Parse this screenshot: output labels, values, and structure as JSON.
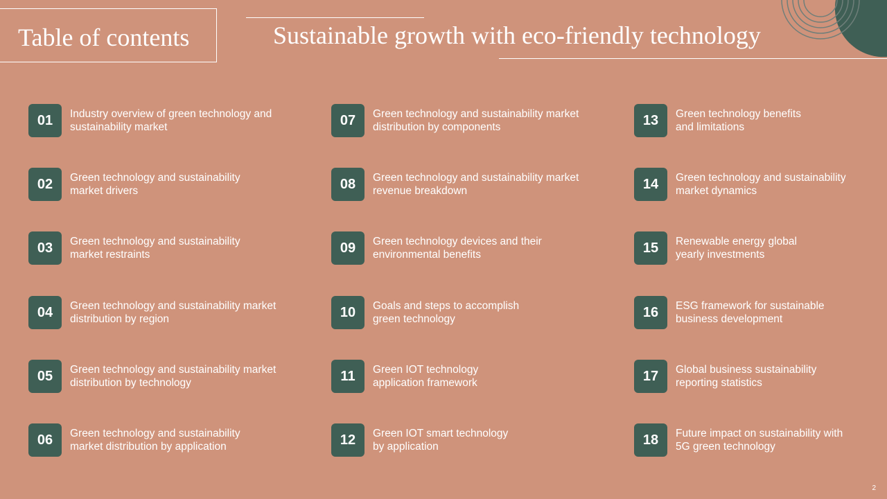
{
  "header": {
    "toc_label": "Table of contents",
    "title": "Sustainable growth with eco-friendly technology"
  },
  "colors": {
    "background": "#cf937b",
    "badge": "#3f5f55",
    "text": "#ffffff"
  },
  "items": [
    {
      "num": "01",
      "l1": "Industry overview of green technology and",
      "l2": "sustainability market"
    },
    {
      "num": "02",
      "l1": "Green technology and sustainability",
      "l2": "market drivers"
    },
    {
      "num": "03",
      "l1": "Green technology and sustainability",
      "l2": "market restraints"
    },
    {
      "num": "04",
      "l1": "Green technology and sustainability market",
      "l2": "distribution by region"
    },
    {
      "num": "05",
      "l1": "Green technology and sustainability market",
      "l2": "distribution by technology"
    },
    {
      "num": "06",
      "l1": "Green technology and sustainability",
      "l2": "market distribution by application"
    },
    {
      "num": "07",
      "l1": "Green technology and sustainability market",
      "l2": "distribution by components"
    },
    {
      "num": "08",
      "l1": "Green technology and sustainability market",
      "l2": "revenue breakdown"
    },
    {
      "num": "09",
      "l1": "Green technology devices and their",
      "l2": "environmental benefits"
    },
    {
      "num": "10",
      "l1": "Goals and steps to accomplish",
      "l2": "green technology"
    },
    {
      "num": "11",
      "l1": "Green IOT technology",
      "l2": "application framework"
    },
    {
      "num": "12",
      "l1": "Green IOT smart technology",
      "l2": "by application"
    },
    {
      "num": "13",
      "l1": "Green technology benefits",
      "l2": "and limitations"
    },
    {
      "num": "14",
      "l1": "Green technology and sustainability",
      "l2": "market dynamics"
    },
    {
      "num": "15",
      "l1": "Renewable energy global",
      "l2": "yearly investments"
    },
    {
      "num": "16",
      "l1": "ESG framework for sustainable",
      "l2": "business development"
    },
    {
      "num": "17",
      "l1": "Global business sustainability",
      "l2": "reporting statistics"
    },
    {
      "num": "18",
      "l1": "Future impact on sustainability with",
      "l2": "5G green technology"
    }
  ],
  "footer": {
    "page_number": "2"
  }
}
